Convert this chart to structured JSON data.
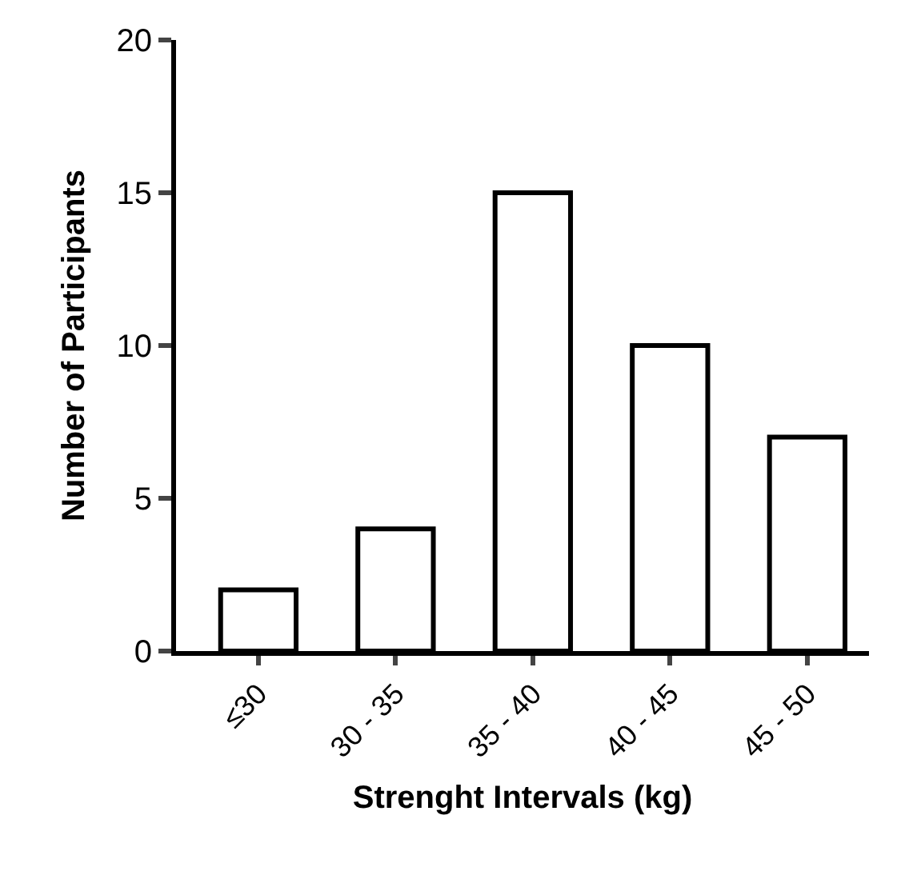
{
  "chart_data": {
    "type": "bar",
    "xlabel": "Strenght Intervals (kg)",
    "ylabel": "Number of Participants",
    "categories": [
      "≤30",
      "30 - 35",
      "35 - 40",
      "40 - 45",
      "45 - 50"
    ],
    "values": [
      2,
      4,
      15,
      10,
      7
    ],
    "color": "#ffffff",
    "ylim": [
      0,
      20
    ],
    "yticks": [
      0,
      5,
      10,
      15,
      20
    ]
  }
}
